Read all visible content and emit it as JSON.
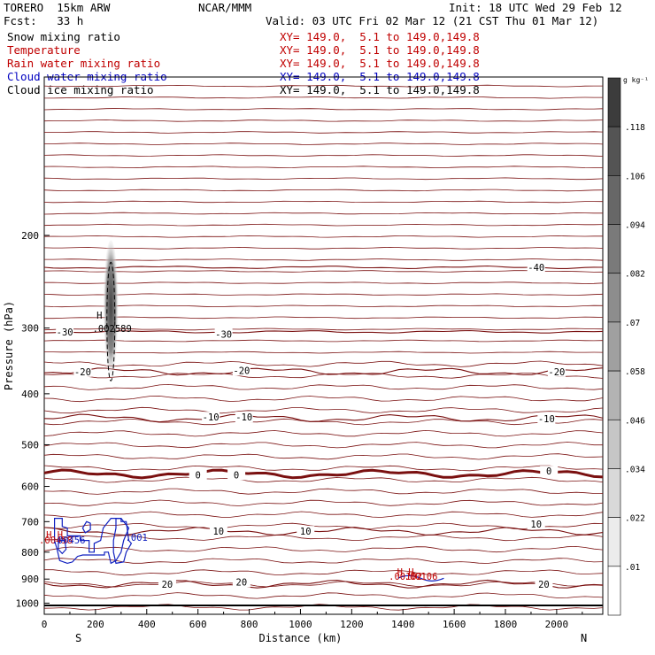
{
  "header": {
    "model": "TORERO  15km ARW",
    "org": "NCAR/MMM",
    "init": "Init: 18 UTC Wed 29 Feb 12",
    "fcst": "Fcst:   33 h",
    "valid": "Valid: 03 UTC Fri 02 Mar 12 (21 CST Thu 01 Mar 12)"
  },
  "fields": [
    {
      "name": "Snow mixing ratio",
      "xy": "",
      "color": "#000000"
    },
    {
      "name": "Temperature",
      "xy": "XY= 149.0,  5.1 to 149.0,149.8",
      "color": "#c00000"
    },
    {
      "name": "Rain water mixing ratio",
      "xy": "XY= 149.0,  5.1 to 149.0,149.8",
      "color": "#c00000"
    },
    {
      "name": "Cloud water mixing ratio",
      "xy": "XY= 149.0,  5.1 to 149.0,149.8",
      "color": "#0000c0"
    },
    {
      "name": "Cloud ice mixing ratio",
      "xy": "XY= 149.0,  5.1 to 149.0,149.8",
      "color": "#000000"
    }
  ],
  "first_xy": "XY= 149.0,  5.1 to 149.0,149.8",
  "colors": {
    "temperature": "#7a1010",
    "cloud_water": "#1020c0",
    "rain": "#c00000",
    "ice": "#000000"
  },
  "chart_data": {
    "type": "contour",
    "xlabel": "Distance (km)",
    "ylabel": "Pressure (hPa)",
    "xlim": [
      0,
      2180
    ],
    "ylim": [
      1050,
      100
    ],
    "y_scale": "log",
    "x_ticks": [
      "0",
      "200",
      "400",
      "600",
      "800",
      "1000",
      "1200",
      "1400",
      "1600",
      "1800",
      "2000"
    ],
    "y_ticks": [
      "200",
      "300",
      "400",
      "500",
      "600",
      "700",
      "800",
      "900",
      "1000"
    ],
    "endpoint_labels": {
      "left": "S",
      "right": "N"
    },
    "temperature_contours": [
      {
        "label": "-40",
        "p": 230
      },
      {
        "label": "-30",
        "p": 305
      },
      {
        "label": "-20",
        "p": 363
      },
      {
        "label": "-10",
        "p": 445
      },
      {
        "label": "0",
        "p": 568
      },
      {
        "label": "10",
        "p": 730
      },
      {
        "label": "20",
        "p": 920
      }
    ],
    "temperature_label_positions": [
      {
        "label": "-40",
        "x": 1920,
        "p": 230
      },
      {
        "label": "-30",
        "x": 80,
        "p": 305
      },
      {
        "label": "-30",
        "x": 700,
        "p": 308
      },
      {
        "label": "-20",
        "x": 150,
        "p": 363
      },
      {
        "label": "-20",
        "x": 770,
        "p": 361
      },
      {
        "label": "-20",
        "x": 2000,
        "p": 363
      },
      {
        "label": "-10",
        "x": 650,
        "p": 443
      },
      {
        "label": "-10",
        "x": 780,
        "p": 443
      },
      {
        "label": "-10",
        "x": 1960,
        "p": 446
      },
      {
        "label": "0",
        "x": 600,
        "p": 570
      },
      {
        "label": "0",
        "x": 750,
        "p": 570
      },
      {
        "label": "0",
        "x": 1970,
        "p": 561
      },
      {
        "label": "10",
        "x": 680,
        "p": 730
      },
      {
        "label": "10",
        "x": 1020,
        "p": 730
      },
      {
        "label": "10",
        "x": 1920,
        "p": 707
      },
      {
        "label": "20",
        "x": 480,
        "p": 920
      },
      {
        "label": "20",
        "x": 770,
        "p": 912
      },
      {
        "label": "20",
        "x": 1950,
        "p": 920
      }
    ],
    "annotations": [
      {
        "text": "H",
        "x": 215,
        "p": 288,
        "color": "#000000"
      },
      {
        "text": ".002589",
        "x": 265,
        "p": 305,
        "color": "#000000"
      },
      {
        "text": "H H",
        "x": 40,
        "p": 752,
        "color": "#c00000"
      },
      {
        "text": ".00458",
        "x": 45,
        "p": 770,
        "color": "#c00000"
      },
      {
        "text": ".00456",
        "x": 95,
        "p": 770,
        "color": "#1020c0"
      },
      {
        "text": ".001",
        "x": 360,
        "p": 762,
        "color": "#1020c0"
      },
      {
        "text": "H H",
        "x": 1410,
        "p": 886,
        "color": "#c00000"
      },
      {
        "text": ".00102",
        "x": 1410,
        "p": 902,
        "color": "#c00000"
      },
      {
        "text": ".00106",
        "x": 1470,
        "p": 902,
        "color": "#c00000"
      }
    ],
    "cloud_ice": {
      "max": 0.002589,
      "x": 260,
      "p_top": 225,
      "p_bottom": 378
    },
    "colorbar": {
      "unit": "g kg⁻¹",
      "labels": [
        ".118",
        ".106",
        ".094",
        ".082",
        ".07",
        ".058",
        ".046",
        ".034",
        ".022",
        ".01"
      ]
    }
  }
}
